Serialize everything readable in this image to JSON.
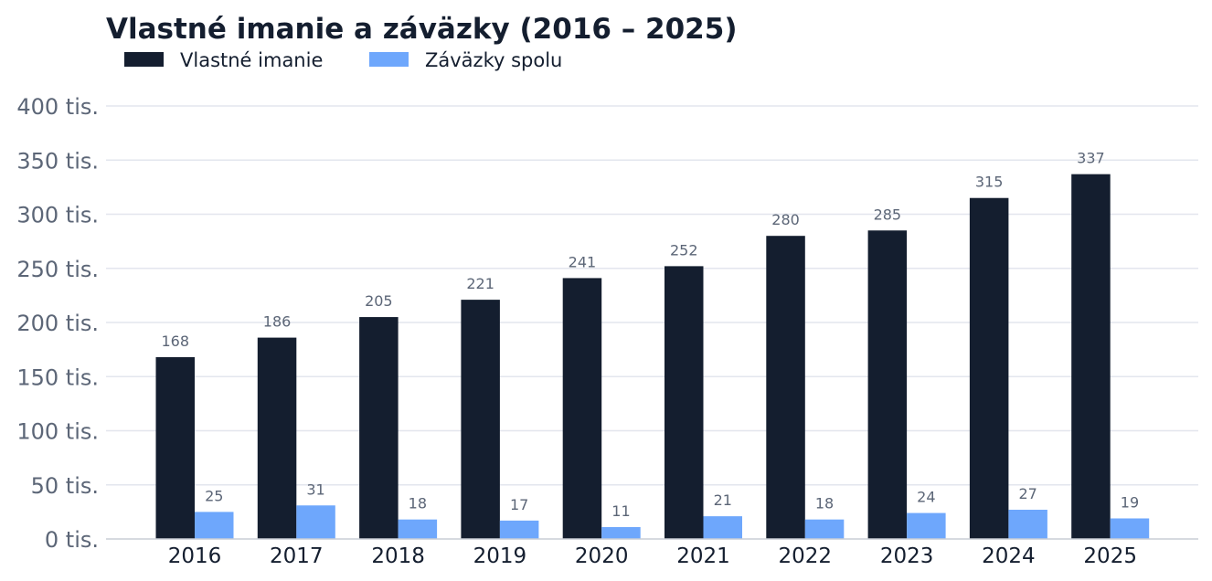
{
  "chart_data": {
    "type": "bar",
    "title": "Vlastné imanie a záväzky (2016 – 2025)",
    "categories": [
      "2016",
      "2017",
      "2018",
      "2019",
      "2020",
      "2021",
      "2022",
      "2023",
      "2024",
      "2025"
    ],
    "series": [
      {
        "name": "Vlastné imanie",
        "color": "#141e2f",
        "values": [
          168,
          186,
          205,
          221,
          241,
          252,
          280,
          285,
          315,
          337
        ],
        "labels": [
          "168",
          "186",
          "205",
          "221",
          "241",
          "252",
          "280",
          "285",
          "315",
          "337"
        ]
      },
      {
        "name": "Záväzky spolu",
        "color": "#6ea7fc",
        "values": [
          25,
          31,
          18,
          17,
          11,
          21,
          18,
          24,
          27,
          19
        ],
        "labels": [
          "25",
          "31",
          "18",
          "17",
          "11",
          "21",
          "18",
          "24",
          "27",
          "19"
        ]
      }
    ],
    "ylim": [
      0,
      400
    ],
    "yticks": [
      0,
      50,
      100,
      150,
      200,
      250,
      300,
      350,
      400
    ],
    "ytick_labels": [
      "0 tis.",
      "50 tis.",
      "100 tis.",
      "150 tis.",
      "200 tis.",
      "250 tis.",
      "300 tis.",
      "350 tis.",
      "400 tis."
    ],
    "grid": true,
    "legend_position": "top-left"
  }
}
